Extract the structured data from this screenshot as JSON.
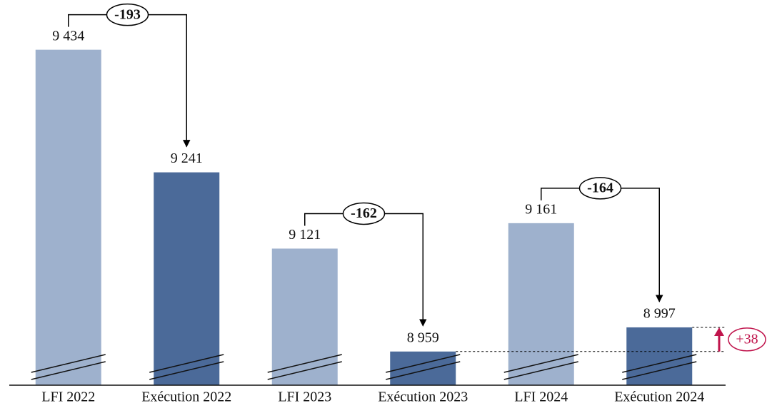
{
  "chart_data": {
    "type": "bar",
    "categories": [
      "LFI 2022",
      "Exécution 2022",
      "LFI 2023",
      "Exécution 2023",
      "LFI 2024",
      "Exécution 2024"
    ],
    "values": [
      9434,
      9241,
      9121,
      8959,
      9161,
      8997
    ],
    "value_labels": [
      "9 434",
      "9 241",
      "9 121",
      "8 959",
      "9 161",
      "8 997"
    ],
    "colors": [
      "#9eb1cd",
      "#4b6a99",
      "#9eb1cd",
      "#4b6a99",
      "#9eb1cd",
      "#4b6a99"
    ],
    "ylim": [
      8906,
      9501
    ],
    "annotations": [
      "-193",
      "-162",
      "-164"
    ],
    "highlight": {
      "text": "+38",
      "color": "#c0144c"
    }
  }
}
